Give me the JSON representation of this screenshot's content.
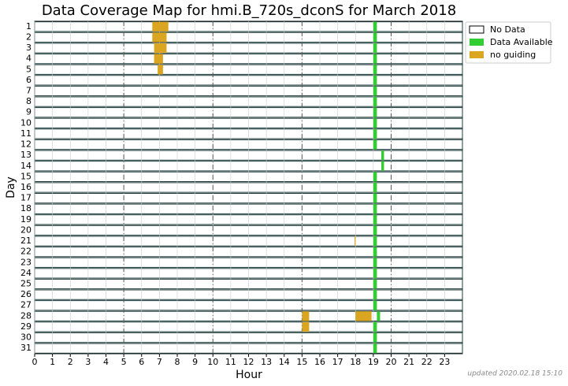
{
  "chart_data": {
    "type": "timeline",
    "title": "Data Coverage Map for hmi.B_720s_dconS for March 2018",
    "xlabel": "Hour",
    "ylabel": "Day",
    "annotation": "updated 2020.02.18 15:10",
    "categories": [
      "1",
      "2",
      "3",
      "4",
      "5",
      "6",
      "7",
      "8",
      "9",
      "10",
      "11",
      "12",
      "13",
      "14",
      "15",
      "16",
      "17",
      "18",
      "19",
      "20",
      "21",
      "22",
      "23",
      "24",
      "25",
      "26",
      "27",
      "28",
      "29",
      "30",
      "31"
    ],
    "xlim": [
      0,
      24
    ],
    "xticks": [
      0,
      1,
      2,
      3,
      4,
      5,
      6,
      7,
      8,
      9,
      10,
      11,
      12,
      13,
      14,
      15,
      16,
      17,
      18,
      19,
      20,
      21,
      22,
      23
    ],
    "major_lines": [
      5,
      10,
      15,
      20
    ],
    "grid": true,
    "legend": "upper right",
    "series": [
      {
        "name": "No Data",
        "color": "#ffffff",
        "day": [
          "1",
          "2",
          "3",
          "4",
          "5",
          "6",
          "7",
          "8",
          "9",
          "10",
          "11",
          "12",
          "13",
          "14",
          "15",
          "16",
          "17",
          "18",
          "19",
          "20",
          "21",
          "22",
          "23",
          "24",
          "25",
          "26",
          "27",
          "28",
          "29",
          "30",
          "31"
        ],
        "start": [
          0,
          0,
          0,
          0,
          0,
          0,
          0,
          0,
          0,
          0,
          0,
          0,
          0,
          0,
          0,
          0,
          0,
          0,
          0,
          0,
          0,
          0,
          0,
          0,
          0,
          0,
          0,
          0,
          0,
          0,
          0
        ],
        "end": [
          24,
          24,
          24,
          24,
          24,
          24,
          24,
          24,
          24,
          24,
          24,
          24,
          24,
          24,
          24,
          24,
          24,
          24,
          24,
          24,
          24,
          24,
          24,
          24,
          24,
          24,
          24,
          24,
          24,
          24,
          24
        ]
      },
      {
        "name": "Data Available",
        "color": "#32cd32",
        "day": [
          "1",
          "2",
          "3",
          "4",
          "5",
          "6",
          "7",
          "8",
          "9",
          "10",
          "11",
          "12",
          "13",
          "14",
          "15",
          "16",
          "17",
          "18",
          "19",
          "20",
          "21",
          "22",
          "23",
          "24",
          "25",
          "26",
          "27",
          "28",
          "29",
          "30",
          "31"
        ],
        "start": [
          19,
          19,
          19,
          19,
          19,
          19,
          19,
          19,
          19,
          19,
          19,
          19,
          19.45,
          19.45,
          19,
          19,
          19,
          19,
          19,
          19,
          19,
          19,
          19,
          19,
          19,
          19,
          19,
          19.2,
          19,
          19,
          19
        ],
        "end": [
          19.2,
          19.2,
          19.2,
          19.2,
          19.2,
          19.2,
          19.2,
          19.2,
          19.2,
          19.2,
          19.2,
          19.2,
          19.6,
          19.6,
          19.2,
          19.2,
          19.2,
          19.2,
          19.2,
          19.2,
          19.2,
          19.2,
          19.2,
          19.2,
          19.2,
          19.2,
          19.2,
          19.38,
          19.2,
          19.2,
          19.2
        ]
      },
      {
        "name": "no guiding",
        "color": "#daa520",
        "day": [
          "1",
          "2",
          "3",
          "4",
          "5",
          "21",
          "28",
          "28",
          "29"
        ],
        "start": [
          6.6,
          6.6,
          6.7,
          6.7,
          6.9,
          17.95,
          15.0,
          18.0,
          15.0
        ],
        "end": [
          7.5,
          7.4,
          7.4,
          7.2,
          7.2,
          18.0,
          15.4,
          18.9,
          15.4
        ]
      }
    ]
  }
}
